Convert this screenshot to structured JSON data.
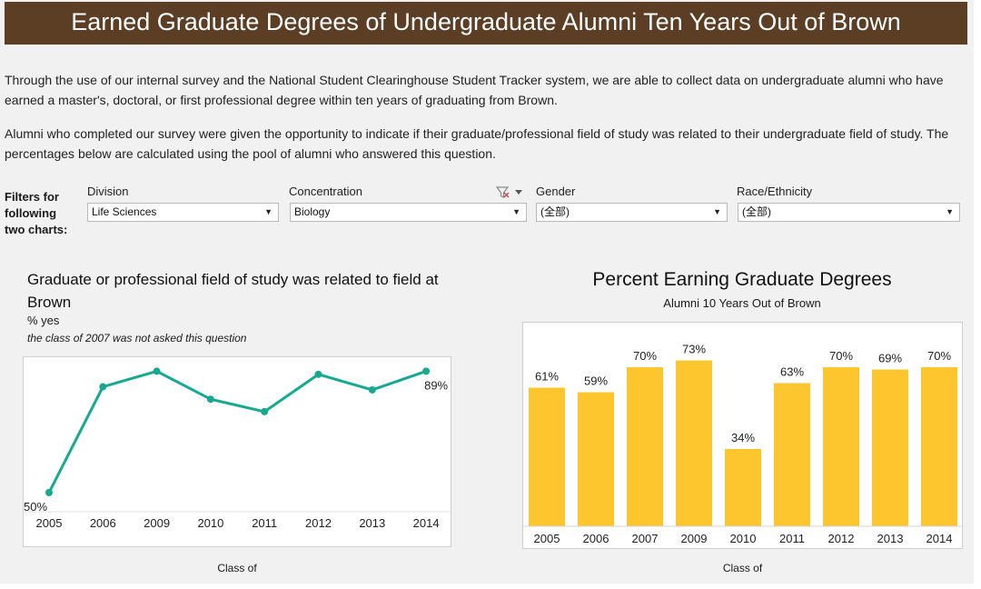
{
  "header": {
    "title": "Earned Graduate Degrees of Undergraduate Alumni Ten Years Out of Brown",
    "bg_color": "#5c3e25"
  },
  "intro": {
    "p1": "Through the use of our internal survey and the National Student Clearinghouse Student Tracker system, we are able to collect data on undergraduate alumni who have earned a master's, doctoral, or first professional degree within ten years of graduating from Brown.",
    "p2": "Alumni who completed our survey were given the opportunity to indicate if their graduate/professional field of study was related to their undergraduate field of study. The percentages below are calculated using the pool of alumni who answered this question."
  },
  "filters": {
    "label": "Filters for following two charts:",
    "division": {
      "label": "Division",
      "value": "Life Sciences"
    },
    "concentration": {
      "label": "Concentration",
      "value": "Biology"
    },
    "gender": {
      "label": "Gender",
      "value": "(全部)"
    },
    "race": {
      "label": "Race/Ethnicity",
      "value": "(全部)"
    }
  },
  "line_chart": {
    "title": "Graduate or professional field of study was related to field at Brown",
    "subtitle": "% yes",
    "note": "the class of 2007 was not asked this question",
    "xtitle": "Class of"
  },
  "bar_chart": {
    "title": "Percent Earning Graduate Degrees",
    "subtitle": "Alumni 10 Years Out of Brown",
    "xtitle": "Class of"
  },
  "chart_data": [
    {
      "type": "line",
      "title": "Graduate or professional field of study was related to field at Brown",
      "ylabel": "% yes",
      "xlabel": "Class of",
      "categories": [
        "2005",
        "2006",
        "2009",
        "2010",
        "2011",
        "2012",
        "2013",
        "2014"
      ],
      "values": [
        50,
        84,
        89,
        80,
        76,
        88,
        83,
        89
      ],
      "data_labels": [
        "50%",
        "",
        "",
        "",
        "",
        "",
        "",
        "89%"
      ],
      "color": "#17a98f",
      "ylim": [
        0,
        100
      ]
    },
    {
      "type": "bar",
      "title": "Percent Earning Graduate Degrees",
      "subtitle": "Alumni 10 Years Out of Brown",
      "xlabel": "Class of",
      "categories": [
        "2005",
        "2006",
        "2007",
        "2009",
        "2010",
        "2011",
        "2012",
        "2013",
        "2014"
      ],
      "values": [
        61,
        59,
        70,
        73,
        34,
        63,
        70,
        69,
        70
      ],
      "data_labels": [
        "61%",
        "59%",
        "70%",
        "73%",
        "34%",
        "63%",
        "70%",
        "69%",
        "70%"
      ],
      "color": "#fec62e",
      "ylim": [
        0,
        85
      ]
    }
  ]
}
